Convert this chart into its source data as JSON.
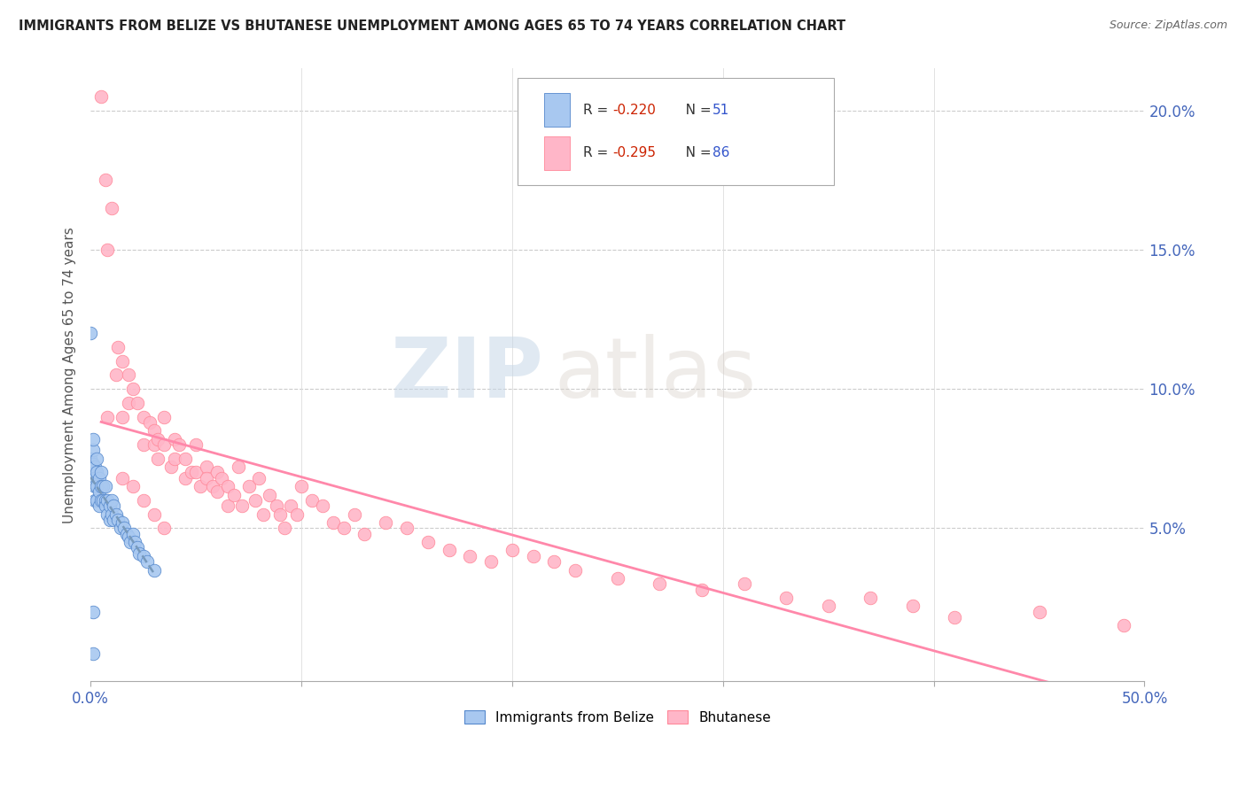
{
  "title": "IMMIGRANTS FROM BELIZE VS BHUTANESE UNEMPLOYMENT AMONG AGES 65 TO 74 YEARS CORRELATION CHART",
  "source": "Source: ZipAtlas.com",
  "ylabel": "Unemployment Among Ages 65 to 74 years",
  "xlim": [
    0.0,
    0.5
  ],
  "ylim": [
    -0.005,
    0.215
  ],
  "xticks": [
    0.0,
    0.1,
    0.2,
    0.3,
    0.4,
    0.5
  ],
  "xticklabels_show": [
    "0.0%",
    "",
    "",
    "",
    "",
    "50.0%"
  ],
  "yticks": [
    0.0,
    0.05,
    0.1,
    0.15,
    0.2
  ],
  "yticklabels_right": [
    "",
    "5.0%",
    "10.0%",
    "15.0%",
    "20.0%"
  ],
  "belize_color": "#a8c8f0",
  "bhutanese_color": "#ffb6c8",
  "belize_edge_color": "#5588cc",
  "bhutanese_edge_color": "#ff8899",
  "belize_trend_color": "#7799bb",
  "bhutanese_trend_color": "#ff88aa",
  "legend_R_belize": "-0.220",
  "legend_N_belize": "51",
  "legend_R_bhutanese": "-0.295",
  "legend_N_bhutanese": "86",
  "watermark_zip": "ZIP",
  "watermark_atlas": "atlas",
  "belize_x": [
    0.0,
    0.001,
    0.001,
    0.001,
    0.001,
    0.002,
    0.002,
    0.002,
    0.002,
    0.002,
    0.003,
    0.003,
    0.003,
    0.003,
    0.004,
    0.004,
    0.004,
    0.005,
    0.005,
    0.005,
    0.006,
    0.006,
    0.007,
    0.007,
    0.007,
    0.008,
    0.008,
    0.009,
    0.009,
    0.01,
    0.01,
    0.011,
    0.011,
    0.012,
    0.013,
    0.014,
    0.015,
    0.016,
    0.017,
    0.018,
    0.019,
    0.02,
    0.021,
    0.022,
    0.023,
    0.025,
    0.027,
    0.03,
    0.0,
    0.001,
    0.001
  ],
  "belize_y": [
    0.075,
    0.068,
    0.073,
    0.078,
    0.082,
    0.07,
    0.072,
    0.068,
    0.065,
    0.06,
    0.075,
    0.07,
    0.065,
    0.06,
    0.068,
    0.063,
    0.058,
    0.07,
    0.065,
    0.06,
    0.065,
    0.06,
    0.065,
    0.06,
    0.058,
    0.06,
    0.055,
    0.058,
    0.053,
    0.06,
    0.055,
    0.058,
    0.053,
    0.055,
    0.053,
    0.05,
    0.052,
    0.05,
    0.048,
    0.047,
    0.045,
    0.048,
    0.045,
    0.043,
    0.041,
    0.04,
    0.038,
    0.035,
    0.12,
    0.02,
    0.005
  ],
  "bhutanese_x": [
    0.005,
    0.007,
    0.008,
    0.01,
    0.012,
    0.013,
    0.015,
    0.015,
    0.018,
    0.018,
    0.02,
    0.022,
    0.025,
    0.025,
    0.028,
    0.03,
    0.03,
    0.032,
    0.032,
    0.035,
    0.035,
    0.038,
    0.04,
    0.04,
    0.042,
    0.045,
    0.045,
    0.048,
    0.05,
    0.05,
    0.052,
    0.055,
    0.055,
    0.058,
    0.06,
    0.06,
    0.062,
    0.065,
    0.065,
    0.068,
    0.07,
    0.072,
    0.075,
    0.078,
    0.08,
    0.082,
    0.085,
    0.088,
    0.09,
    0.092,
    0.095,
    0.098,
    0.1,
    0.105,
    0.11,
    0.115,
    0.12,
    0.125,
    0.13,
    0.14,
    0.15,
    0.16,
    0.17,
    0.18,
    0.19,
    0.2,
    0.21,
    0.22,
    0.23,
    0.25,
    0.27,
    0.29,
    0.31,
    0.33,
    0.35,
    0.37,
    0.39,
    0.41,
    0.45,
    0.49,
    0.015,
    0.02,
    0.025,
    0.03,
    0.035,
    0.008
  ],
  "bhutanese_y": [
    0.205,
    0.175,
    0.15,
    0.165,
    0.105,
    0.115,
    0.11,
    0.09,
    0.105,
    0.095,
    0.1,
    0.095,
    0.09,
    0.08,
    0.088,
    0.085,
    0.08,
    0.082,
    0.075,
    0.09,
    0.08,
    0.072,
    0.082,
    0.075,
    0.08,
    0.075,
    0.068,
    0.07,
    0.08,
    0.07,
    0.065,
    0.072,
    0.068,
    0.065,
    0.07,
    0.063,
    0.068,
    0.065,
    0.058,
    0.062,
    0.072,
    0.058,
    0.065,
    0.06,
    0.068,
    0.055,
    0.062,
    0.058,
    0.055,
    0.05,
    0.058,
    0.055,
    0.065,
    0.06,
    0.058,
    0.052,
    0.05,
    0.055,
    0.048,
    0.052,
    0.05,
    0.045,
    0.042,
    0.04,
    0.038,
    0.042,
    0.04,
    0.038,
    0.035,
    0.032,
    0.03,
    0.028,
    0.03,
    0.025,
    0.022,
    0.025,
    0.022,
    0.018,
    0.02,
    0.015,
    0.068,
    0.065,
    0.06,
    0.055,
    0.05,
    0.09
  ]
}
